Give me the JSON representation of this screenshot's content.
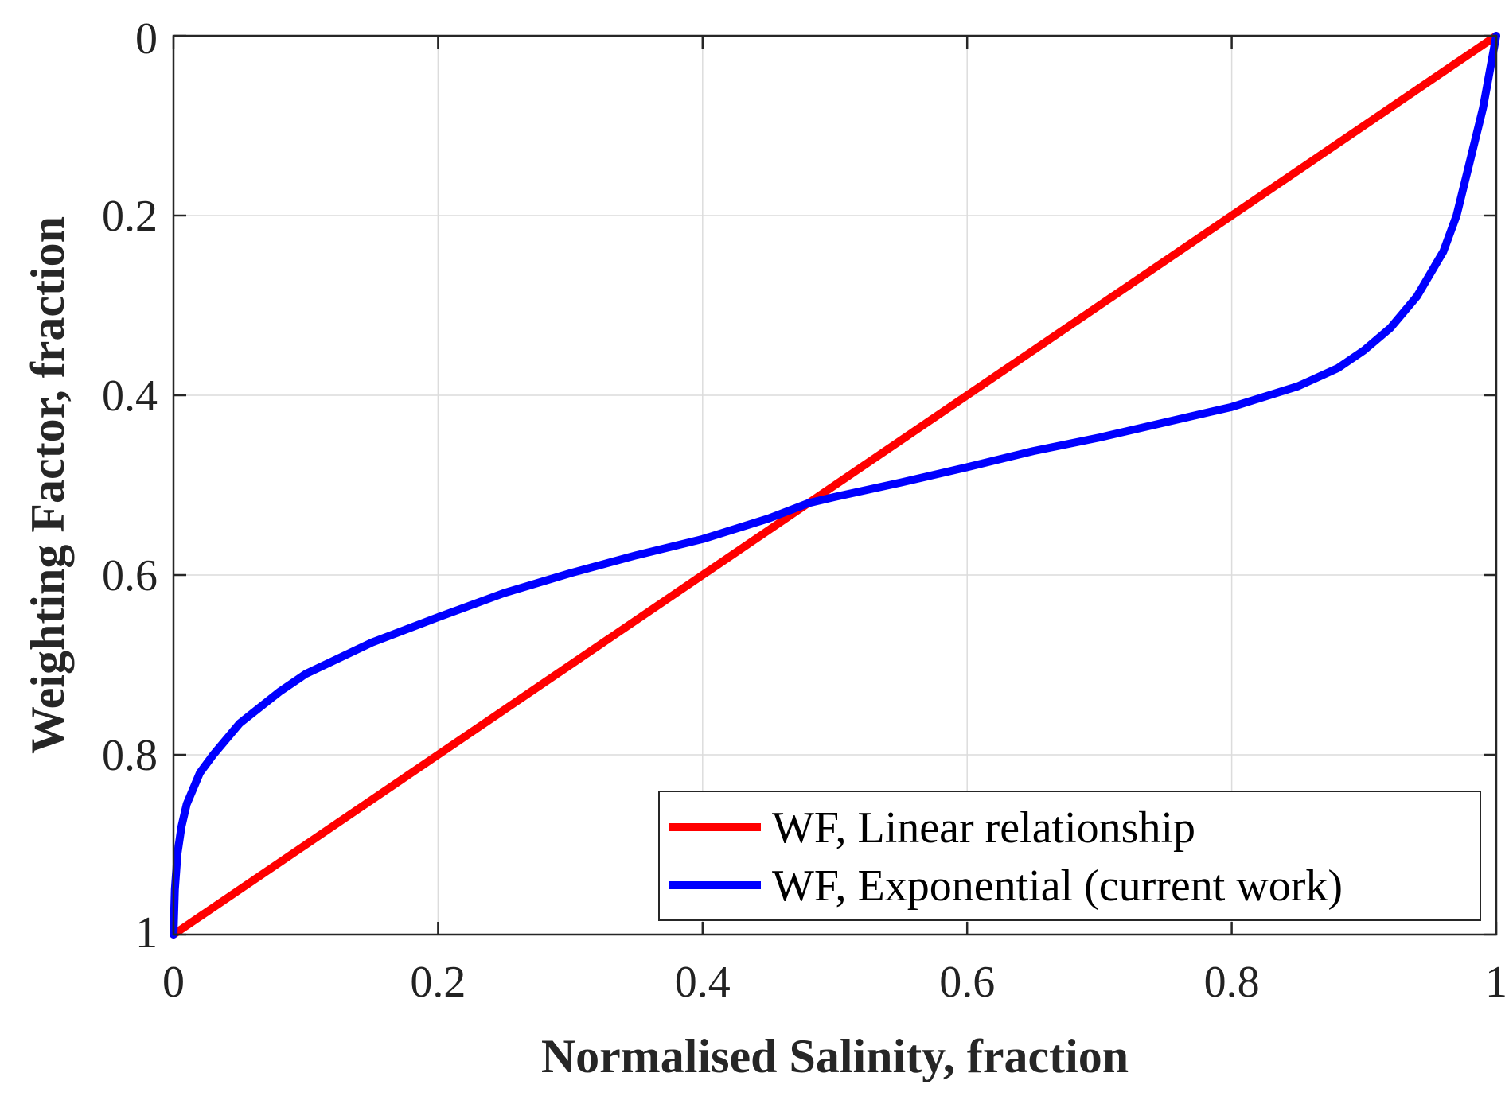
{
  "chart_data": {
    "type": "line",
    "title": "",
    "xlabel": "Normalised Salinity, fraction",
    "ylabel": "Weighting Factor, fraction",
    "xlim": [
      0,
      1
    ],
    "ylim": [
      0,
      1
    ],
    "y_reversed": true,
    "grid": true,
    "legend_position": "bottom-right",
    "x_ticks": [
      {
        "value": 0,
        "label": "0"
      },
      {
        "value": 0.2,
        "label": "0.2"
      },
      {
        "value": 0.4,
        "label": "0.4"
      },
      {
        "value": 0.6,
        "label": "0.6"
      },
      {
        "value": 0.8,
        "label": "0.8"
      },
      {
        "value": 1,
        "label": "1"
      }
    ],
    "y_ticks": [
      {
        "value": 0,
        "label": "0"
      },
      {
        "value": 0.2,
        "label": "0.2"
      },
      {
        "value": 0.4,
        "label": "0.4"
      },
      {
        "value": 0.6,
        "label": "0.6"
      },
      {
        "value": 0.8,
        "label": "0.8"
      },
      {
        "value": 1,
        "label": "1"
      }
    ],
    "series": [
      {
        "name": "WF, Linear relationship",
        "color": "#ff0000",
        "x": [
          0,
          1
        ],
        "y": [
          1,
          0
        ]
      },
      {
        "name": "WF, Exponential (current work)",
        "color": "#0000ff",
        "x": [
          0,
          0.001,
          0.003,
          0.006,
          0.01,
          0.02,
          0.03,
          0.05,
          0.08,
          0.1,
          0.15,
          0.2,
          0.25,
          0.3,
          0.35,
          0.4,
          0.45,
          0.48,
          0.5,
          0.55,
          0.6,
          0.65,
          0.7,
          0.75,
          0.8,
          0.85,
          0.88,
          0.9,
          0.92,
          0.94,
          0.96,
          0.97,
          0.98,
          0.99,
          0.995,
          1
        ],
        "y": [
          1,
          0.95,
          0.91,
          0.88,
          0.855,
          0.82,
          0.8,
          0.765,
          0.73,
          0.71,
          0.675,
          0.647,
          0.62,
          0.598,
          0.578,
          0.56,
          0.537,
          0.52,
          0.513,
          0.497,
          0.48,
          0.462,
          0.447,
          0.43,
          0.413,
          0.39,
          0.37,
          0.35,
          0.325,
          0.29,
          0.24,
          0.2,
          0.14,
          0.08,
          0.04,
          0
        ]
      }
    ]
  }
}
